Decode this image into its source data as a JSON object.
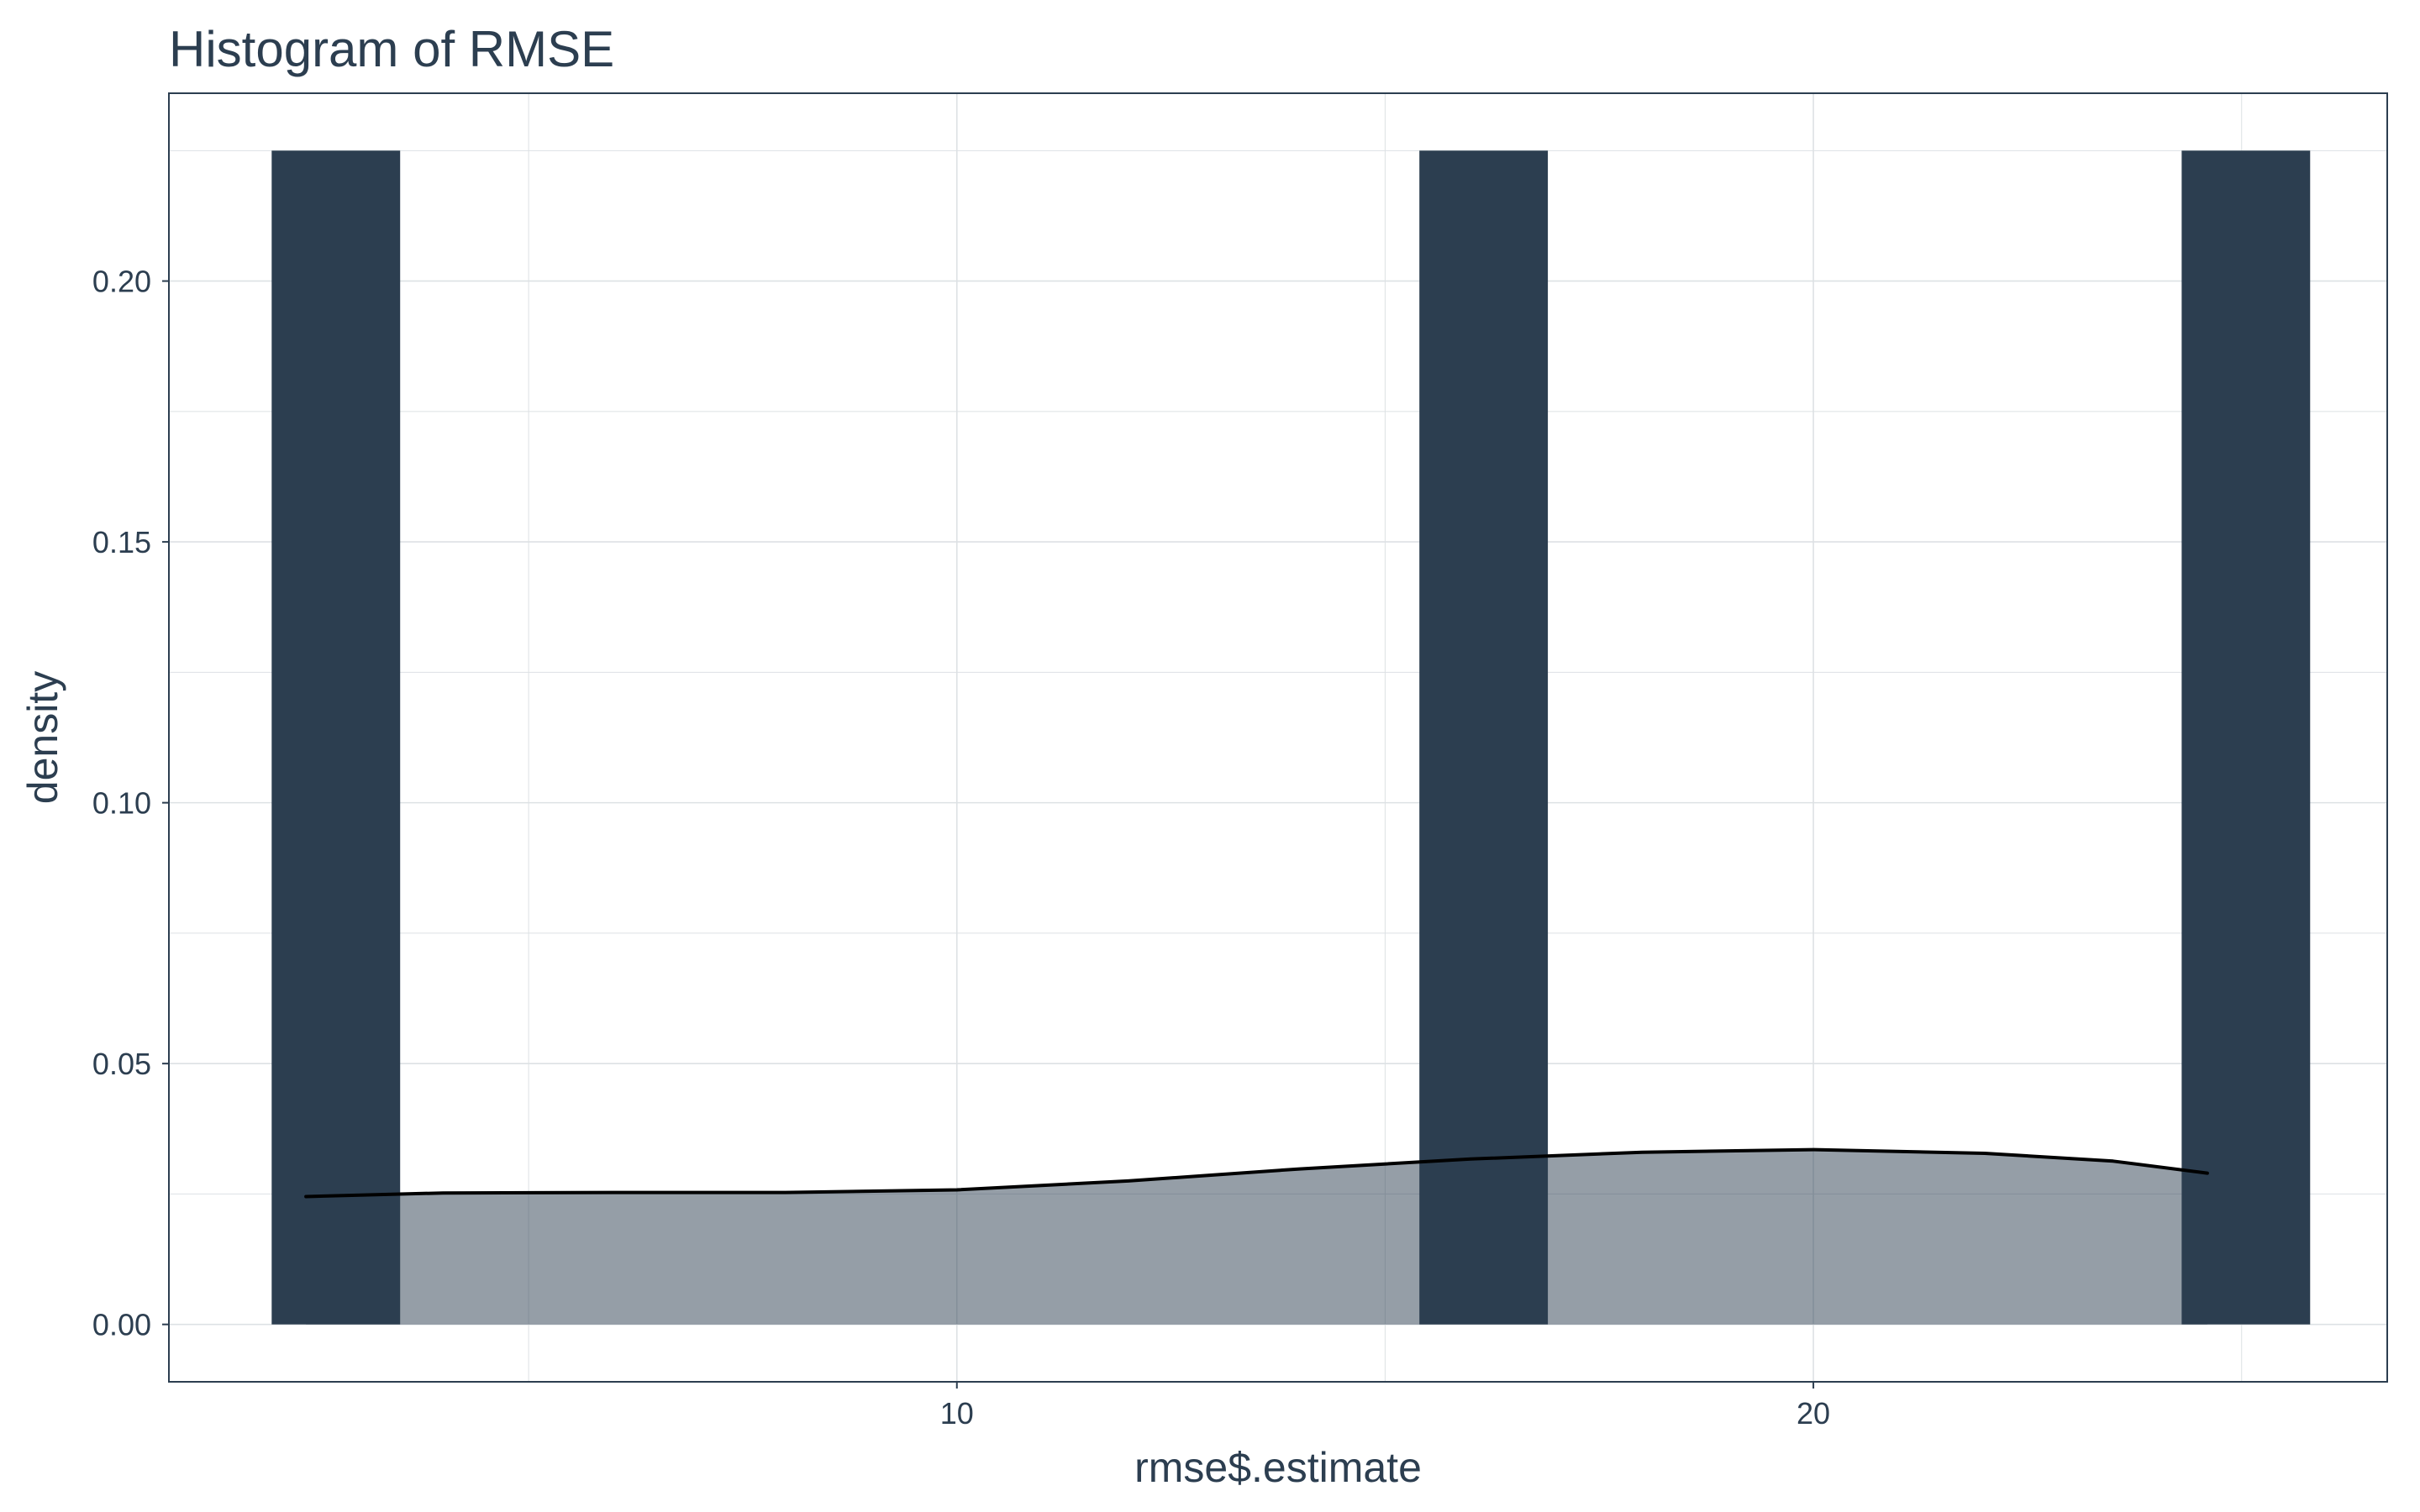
{
  "chart_data": {
    "type": "bar",
    "title": "Histogram of RMSE",
    "xlabel": "rmse$.estimate",
    "ylabel": "density",
    "xlim": [
      0.8,
      26.7
    ],
    "ylim": [
      -0.011,
      0.236
    ],
    "x_ticks": [
      10,
      20
    ],
    "x_minor_ticks": [
      5,
      15,
      25
    ],
    "y_ticks": [
      0.0,
      0.05,
      0.1,
      0.15,
      0.2
    ],
    "y_tick_labels": [
      "0.00",
      "0.05",
      "0.10",
      "0.15",
      "0.20"
    ],
    "y_minor_ticks": [
      0.025,
      0.075,
      0.125,
      0.175,
      0.225
    ],
    "grid": true,
    "series": [
      {
        "type": "histogram",
        "color": "#2c3e50",
        "bins": [
          {
            "x0": 2.0,
            "x1": 3.5,
            "density": 0.225
          },
          {
            "x0": 15.4,
            "x1": 16.9,
            "density": 0.225
          },
          {
            "x0": 24.3,
            "x1": 25.8,
            "density": 0.225
          }
        ]
      },
      {
        "type": "density",
        "color": "#2c3e50",
        "fill_opacity": 0.5,
        "points": [
          {
            "x": 2.4,
            "y": 0.0245
          },
          {
            "x": 4.0,
            "y": 0.0252
          },
          {
            "x": 6.0,
            "y": 0.0253
          },
          {
            "x": 8.0,
            "y": 0.0253
          },
          {
            "x": 10.0,
            "y": 0.0258
          },
          {
            "x": 12.0,
            "y": 0.0275
          },
          {
            "x": 14.0,
            "y": 0.0298
          },
          {
            "x": 16.0,
            "y": 0.0317
          },
          {
            "x": 18.0,
            "y": 0.033
          },
          {
            "x": 20.0,
            "y": 0.0335
          },
          {
            "x": 22.0,
            "y": 0.0328
          },
          {
            "x": 23.5,
            "y": 0.0313
          },
          {
            "x": 24.6,
            "y": 0.029
          }
        ]
      }
    ]
  },
  "colors": {
    "bar": "#2c3e50",
    "title": "#2c3e50",
    "grid": "#dde1e4",
    "border": "#2c3e50",
    "curve": "#000000"
  }
}
